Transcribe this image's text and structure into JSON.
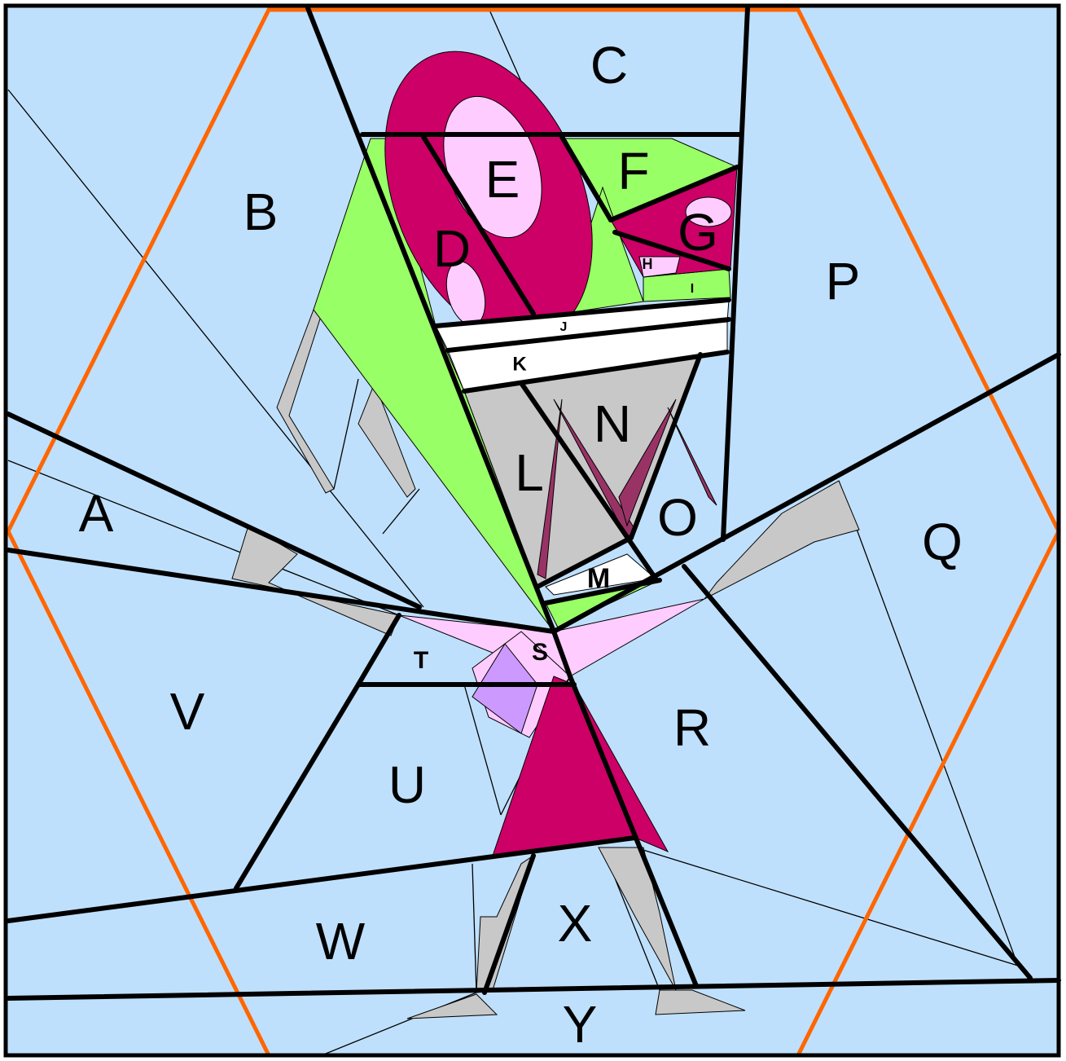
{
  "sections": [
    {
      "label": "A"
    },
    {
      "label": "B"
    },
    {
      "label": "C"
    },
    {
      "label": "D"
    },
    {
      "label": "E"
    },
    {
      "label": "F"
    },
    {
      "label": "G"
    },
    {
      "label": "H"
    },
    {
      "label": "I"
    },
    {
      "label": "J"
    },
    {
      "label": "K"
    },
    {
      "label": "L"
    },
    {
      "label": "M"
    },
    {
      "label": "N"
    },
    {
      "label": "O"
    },
    {
      "label": "P"
    },
    {
      "label": "Q"
    },
    {
      "label": "R"
    },
    {
      "label": "S"
    },
    {
      "label": "T"
    },
    {
      "label": "U"
    },
    {
      "label": "V"
    },
    {
      "label": "W"
    },
    {
      "label": "X"
    },
    {
      "label": "Y"
    }
  ]
}
